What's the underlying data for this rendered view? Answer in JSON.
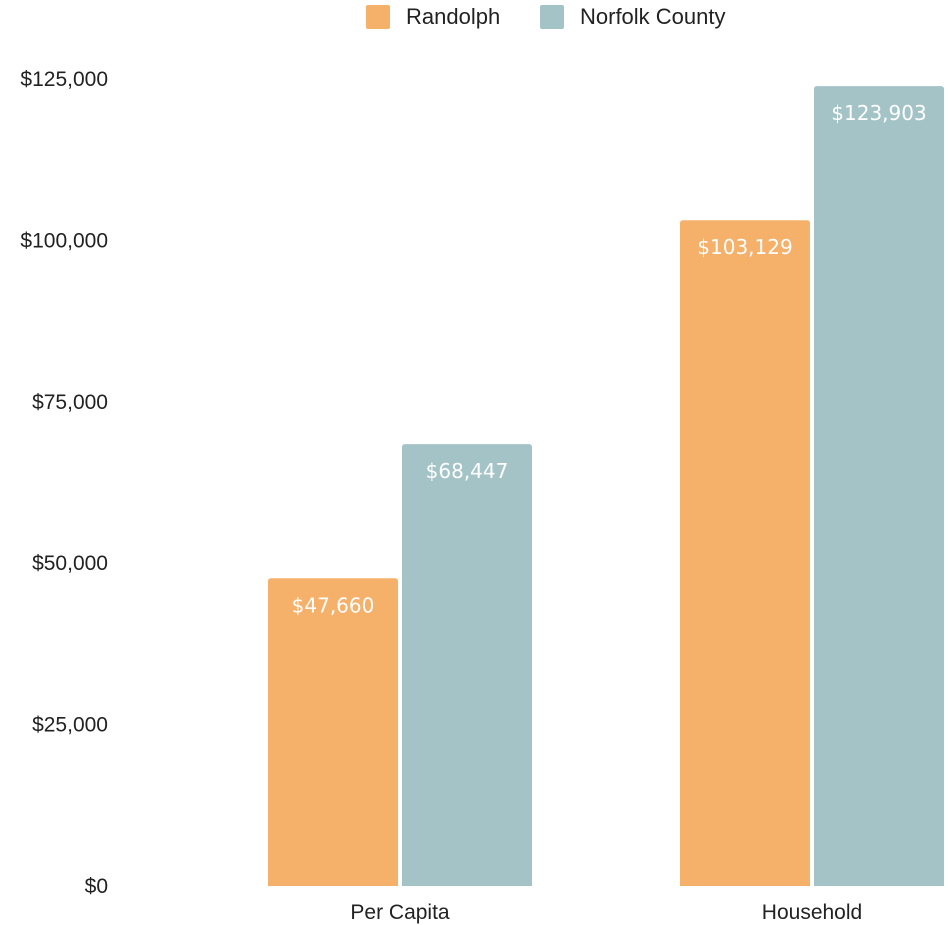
{
  "chart_data": {
    "type": "bar",
    "categories": [
      "Per Capita",
      "Household"
    ],
    "series": [
      {
        "name": "Randolph",
        "color": "#f5b06a",
        "values": [
          47660,
          103129
        ],
        "labels": [
          "$47,660",
          "$103,129"
        ]
      },
      {
        "name": "Norfolk County",
        "color": "#a3c3c7",
        "values": [
          68447,
          123903
        ],
        "labels": [
          "$68,447",
          "$123,903"
        ]
      }
    ],
    "ylim": [
      0,
      125000
    ],
    "yticks": [
      0,
      25000,
      50000,
      75000,
      100000,
      125000
    ],
    "ytick_labels": [
      "$0",
      "$25,000",
      "$50,000",
      "$75,000",
      "$100,000",
      "$125,000"
    ],
    "grid": false,
    "legend_position": "top-center"
  }
}
